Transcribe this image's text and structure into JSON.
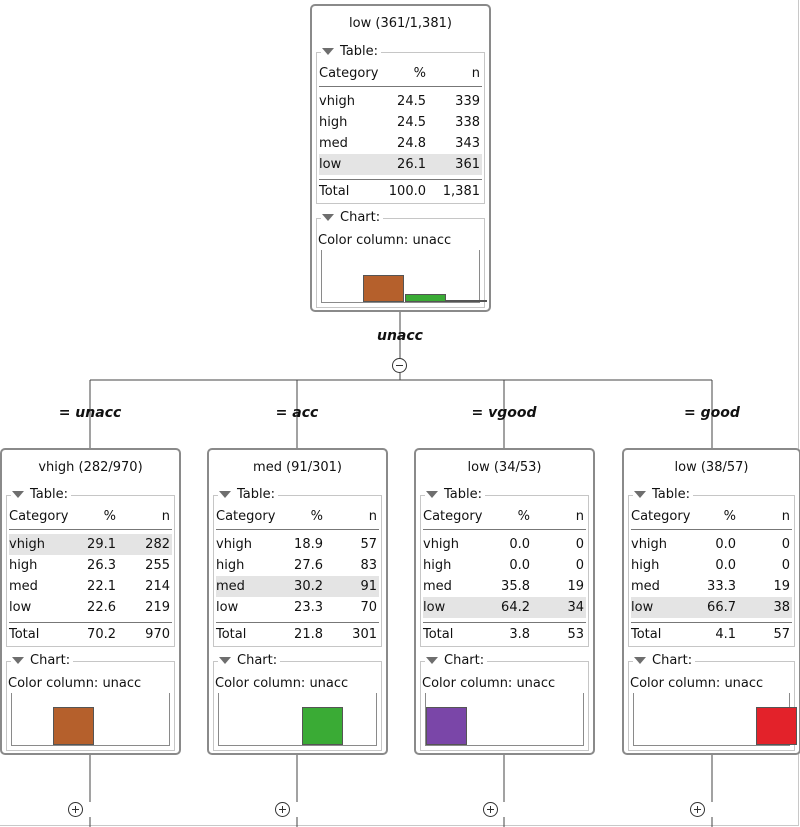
{
  "split_attribute": "unacc",
  "colors": {
    "acc": "#b5602c",
    "good": "#3aab35",
    "unacc": "#e3222a",
    "vgood": "#7a46a8"
  },
  "root": {
    "title": "low (361/1,381)",
    "table_label": "Table:",
    "chart_label": "Chart:",
    "color_column": "Color column: unacc",
    "headers": [
      "Category",
      "%",
      "n"
    ],
    "rows": [
      {
        "category": "vhigh",
        "pct": "24.5",
        "n": "339",
        "highlight": false
      },
      {
        "category": "high",
        "pct": "24.5",
        "n": "338",
        "highlight": false
      },
      {
        "category": "med",
        "pct": "24.8",
        "n": "343",
        "highlight": false
      },
      {
        "category": "low",
        "pct": "26.1",
        "n": "361",
        "highlight": true
      }
    ],
    "total": {
      "label": "Total",
      "pct": "100.0",
      "n": "1,381"
    },
    "bars": [
      {
        "class": "unacc",
        "value": 0.0
      },
      {
        "class": "acc",
        "value": 0.7
      },
      {
        "class": "good",
        "value": 0.22
      },
      {
        "class": "vgood",
        "value": 0.06
      }
    ],
    "toggle": "collapse"
  },
  "children": [
    {
      "edge_label": "= unacc",
      "title": "vhigh (282/970)",
      "table_label": "Table:",
      "chart_label": "Chart:",
      "color_column": "Color column: unacc",
      "headers": [
        "Category",
        "%",
        "n"
      ],
      "rows": [
        {
          "category": "vhigh",
          "pct": "29.1",
          "n": "282",
          "highlight": true
        },
        {
          "category": "high",
          "pct": "26.3",
          "n": "255",
          "highlight": false
        },
        {
          "category": "med",
          "pct": "22.1",
          "n": "214",
          "highlight": false
        },
        {
          "category": "low",
          "pct": "22.6",
          "n": "219",
          "highlight": false
        }
      ],
      "total": {
        "label": "Total",
        "pct": "70.2",
        "n": "970"
      },
      "bars": [
        {
          "class": "unacc",
          "value": 0.0
        },
        {
          "class": "acc",
          "value": 1.0
        },
        {
          "class": "good",
          "value": 0.0
        },
        {
          "class": "vgood",
          "value": 0.0
        }
      ],
      "toggle": "expand"
    },
    {
      "edge_label": "= acc",
      "title": "med (91/301)",
      "table_label": "Table:",
      "chart_label": "Chart:",
      "color_column": "Color column: unacc",
      "headers": [
        "Category",
        "%",
        "n"
      ],
      "rows": [
        {
          "category": "vhigh",
          "pct": "18.9",
          "n": "57",
          "highlight": false
        },
        {
          "category": "high",
          "pct": "27.6",
          "n": "83",
          "highlight": false
        },
        {
          "category": "med",
          "pct": "30.2",
          "n": "91",
          "highlight": true
        },
        {
          "category": "low",
          "pct": "23.3",
          "n": "70",
          "highlight": false
        }
      ],
      "total": {
        "label": "Total",
        "pct": "21.8",
        "n": "301"
      },
      "bars": [
        {
          "class": "unacc",
          "value": 0.0
        },
        {
          "class": "acc",
          "value": 0.0
        },
        {
          "class": "good",
          "value": 1.0
        },
        {
          "class": "vgood",
          "value": 0.0
        }
      ],
      "toggle": "expand"
    },
    {
      "edge_label": "= vgood",
      "title": "low (34/53)",
      "table_label": "Table:",
      "chart_label": "Chart:",
      "color_column": "Color column: unacc",
      "headers": [
        "Category",
        "%",
        "n"
      ],
      "rows": [
        {
          "category": "vhigh",
          "pct": "0.0",
          "n": "0",
          "highlight": false
        },
        {
          "category": "high",
          "pct": "0.0",
          "n": "0",
          "highlight": false
        },
        {
          "category": "med",
          "pct": "35.8",
          "n": "19",
          "highlight": false
        },
        {
          "category": "low",
          "pct": "64.2",
          "n": "34",
          "highlight": true
        }
      ],
      "total": {
        "label": "Total",
        "pct": "3.8",
        "n": "53"
      },
      "bars": [
        {
          "class": "vgood",
          "value": 1.0
        },
        {
          "class": "acc",
          "value": 0.0
        },
        {
          "class": "good",
          "value": 0.0
        },
        {
          "class": "unacc",
          "value": 0.0
        }
      ],
      "toggle": "expand"
    },
    {
      "edge_label": "= good",
      "title": "low (38/57)",
      "table_label": "Table:",
      "chart_label": "Chart:",
      "color_column": "Color column: unacc",
      "headers": [
        "Category",
        "%",
        "n"
      ],
      "rows": [
        {
          "category": "vhigh",
          "pct": "0.0",
          "n": "0",
          "highlight": false
        },
        {
          "category": "high",
          "pct": "0.0",
          "n": "0",
          "highlight": false
        },
        {
          "category": "med",
          "pct": "33.3",
          "n": "19",
          "highlight": false
        },
        {
          "category": "low",
          "pct": "66.7",
          "n": "38",
          "highlight": true
        }
      ],
      "total": {
        "label": "Total",
        "pct": "4.1",
        "n": "57"
      },
      "bars": [
        {
          "class": "vgood",
          "value": 0.0
        },
        {
          "class": "acc",
          "value": 0.0
        },
        {
          "class": "good",
          "value": 0.0
        },
        {
          "class": "unacc",
          "value": 1.0
        }
      ],
      "toggle": "expand"
    }
  ]
}
